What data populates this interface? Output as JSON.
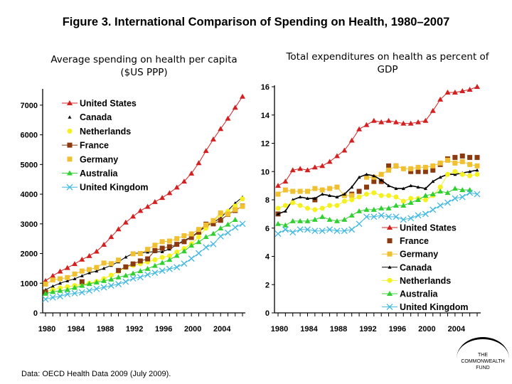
{
  "title": "Figure 3. International Comparison of Spending on Health, 1980–2007",
  "source": "Data: OECD Health Data 2009 (July 2009).",
  "logo_text": "THE COMMONWEALTH FUND",
  "colors": {
    "United States": "#d42020",
    "Canada": "#000000",
    "Netherlands": "#f5f020",
    "France": "#8b3a10",
    "Germany": "#f0c030",
    "Australia": "#30d030",
    "United Kingdom": "#40b8e0"
  },
  "chart_data": [
    {
      "type": "line",
      "title": "Average spending on health per capita ($US PPP)",
      "xlabel": "",
      "ylabel": "",
      "ylim": [
        0,
        7500
      ],
      "yticks": [
        0,
        1000,
        2000,
        3000,
        4000,
        5000,
        6000,
        7000
      ],
      "xticks": [
        1980,
        1984,
        1988,
        1992,
        1996,
        2000,
        2004
      ],
      "legend": "top-left",
      "grid": false,
      "x": [
        1980,
        1981,
        1982,
        1983,
        1984,
        1985,
        1986,
        1987,
        1988,
        1989,
        1990,
        1991,
        1992,
        1993,
        1994,
        1995,
        1996,
        1997,
        1998,
        1999,
        2000,
        2001,
        2002,
        2003,
        2004,
        2005,
        2006,
        2007
      ],
      "series": [
        {
          "name": "United States",
          "marker": "triangle",
          "values": [
            1080,
            1250,
            1400,
            1520,
            1650,
            1800,
            1920,
            2070,
            2300,
            2560,
            2820,
            3050,
            3250,
            3440,
            3580,
            3740,
            3880,
            4040,
            4230,
            4430,
            4700,
            5050,
            5460,
            5850,
            6200,
            6550,
            6920,
            7290
          ]
        },
        {
          "name": "Canada",
          "marker": "small-triangle",
          "values": [
            780,
            900,
            1000,
            1080,
            1150,
            1250,
            1350,
            1410,
            1500,
            1600,
            1720,
            1880,
            2000,
            2020,
            2050,
            2060,
            2060,
            2150,
            2300,
            2450,
            2550,
            2750,
            2900,
            3050,
            3200,
            3450,
            3700,
            3900
          ]
        },
        {
          "name": "Netherlands",
          "marker": "circle",
          "values": [
            700,
            780,
            840,
            880,
            920,
            960,
            1000,
            1060,
            1150,
            1270,
            1400,
            1530,
            1600,
            1660,
            1720,
            1790,
            1870,
            1920,
            2050,
            2170,
            2330,
            2560,
            2850,
            3080,
            3310,
            3420,
            3600,
            3840
          ]
        },
        {
          "name": "France",
          "marker": "square",
          "values": [
            700,
            null,
            null,
            null,
            null,
            1050,
            null,
            null,
            null,
            null,
            1430,
            1550,
            1650,
            1750,
            1820,
            2100,
            2180,
            2230,
            2310,
            2400,
            2540,
            2720,
            2990,
            3000,
            3120,
            3320,
            3450,
            3600
          ]
        },
        {
          "name": "Germany",
          "marker": "square",
          "values": [
            970,
            1110,
            1150,
            1190,
            1310,
            1410,
            1460,
            1530,
            1680,
            1660,
            1780,
            null,
            1990,
            2000,
            2140,
            2280,
            2400,
            2420,
            2500,
            2600,
            2660,
            2810,
            2960,
            3110,
            3370,
            3330,
            3480,
            3590
          ]
        },
        {
          "name": "Australia",
          "marker": "triangle",
          "values": [
            650,
            710,
            750,
            780,
            850,
            920,
            980,
            1030,
            1080,
            1130,
            1200,
            1260,
            1330,
            1410,
            1490,
            1590,
            1690,
            1790,
            1930,
            2080,
            2270,
            2390,
            2560,
            2670,
            2850,
            2980,
            3140,
            null
          ]
        },
        {
          "name": "United Kingdom",
          "marker": "x",
          "values": [
            460,
            520,
            560,
            630,
            660,
            690,
            750,
            810,
            860,
            920,
            970,
            1050,
            1160,
            1200,
            1290,
            1350,
            1420,
            1480,
            1540,
            1660,
            1830,
            2010,
            2210,
            2320,
            2580,
            2700,
            2880,
            3000
          ]
        }
      ]
    },
    {
      "type": "line",
      "title": "Total expenditures on health as percent of GDP",
      "xlabel": "",
      "ylabel": "",
      "ylim": [
        0,
        16
      ],
      "yticks": [
        0,
        2,
        4,
        6,
        8,
        10,
        12,
        14,
        16
      ],
      "xticks": [
        1980,
        1984,
        1988,
        1992,
        1996,
        2000,
        2004
      ],
      "legend": "bottom-right",
      "grid": false,
      "x": [
        1980,
        1981,
        1982,
        1983,
        1984,
        1985,
        1986,
        1987,
        1988,
        1989,
        1990,
        1991,
        1992,
        1993,
        1994,
        1995,
        1996,
        1997,
        1998,
        1999,
        2000,
        2001,
        2002,
        2003,
        2004,
        2005,
        2006,
        2007
      ],
      "series": [
        {
          "name": "United States",
          "marker": "triangle",
          "values": [
            9.0,
            9.3,
            10.1,
            10.2,
            10.1,
            10.3,
            10.4,
            10.7,
            11.1,
            11.5,
            12.2,
            13.0,
            13.3,
            13.6,
            13.5,
            13.6,
            13.5,
            13.4,
            13.4,
            13.5,
            13.6,
            14.3,
            15.1,
            15.6,
            15.6,
            15.7,
            15.8,
            16.0
          ]
        },
        {
          "name": "France",
          "marker": "square",
          "values": [
            7.0,
            null,
            null,
            null,
            null,
            8.0,
            null,
            null,
            null,
            null,
            8.4,
            8.6,
            8.9,
            9.3,
            9.3,
            10.4,
            10.4,
            null,
            10.0,
            10.0,
            10.0,
            10.1,
            10.5,
            10.9,
            11.0,
            11.1,
            11.0,
            11.0
          ]
        },
        {
          "name": "Germany",
          "marker": "square",
          "values": [
            8.4,
            8.7,
            8.6,
            8.6,
            8.6,
            8.8,
            8.7,
            8.8,
            8.9,
            8.3,
            8.3,
            null,
            9.6,
            9.6,
            9.8,
            10.1,
            10.4,
            10.2,
            10.2,
            10.3,
            10.3,
            10.4,
            10.6,
            10.8,
            10.6,
            10.7,
            10.5,
            10.4
          ]
        },
        {
          "name": "Canada",
          "marker": "small-triangle",
          "values": [
            7.0,
            7.2,
            8.0,
            8.2,
            8.1,
            8.1,
            8.4,
            8.3,
            8.2,
            8.4,
            8.9,
            9.6,
            9.8,
            9.7,
            9.4,
            9.0,
            8.8,
            8.8,
            9.0,
            8.9,
            8.8,
            9.3,
            9.6,
            9.8,
            9.8,
            9.9,
            10.0,
            10.1
          ]
        },
        {
          "name": "Netherlands",
          "marker": "circle",
          "values": [
            7.4,
            7.6,
            7.8,
            7.6,
            7.4,
            7.3,
            7.4,
            7.6,
            7.6,
            7.9,
            8.0,
            8.2,
            8.4,
            8.5,
            8.3,
            8.3,
            8.2,
            7.9,
            8.1,
            8.1,
            8.0,
            8.3,
            8.9,
            9.8,
            10.0,
            9.8,
            9.7,
            9.8
          ]
        },
        {
          "name": "Australia",
          "marker": "triangle",
          "values": [
            6.3,
            6.2,
            6.5,
            6.5,
            6.5,
            6.6,
            6.8,
            6.6,
            6.5,
            6.6,
            6.9,
            7.2,
            7.3,
            7.3,
            7.4,
            7.4,
            7.6,
            7.6,
            7.8,
            8.0,
            8.3,
            8.4,
            8.6,
            8.5,
            8.8,
            8.7,
            8.7,
            null
          ]
        },
        {
          "name": "United Kingdom",
          "marker": "x",
          "values": [
            5.6,
            5.9,
            5.7,
            5.9,
            5.9,
            5.8,
            5.8,
            5.9,
            5.8,
            5.8,
            5.9,
            6.3,
            6.8,
            6.8,
            6.9,
            6.8,
            6.8,
            6.6,
            6.7,
            6.9,
            7.0,
            7.3,
            7.6,
            7.8,
            8.1,
            8.2,
            8.5,
            8.4
          ]
        }
      ]
    }
  ]
}
